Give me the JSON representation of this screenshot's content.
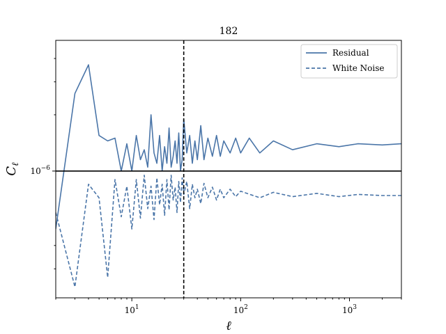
{
  "chart_data": {
    "type": "line",
    "title": "182",
    "xlabel": "ℓ",
    "ylabel": "C",
    "ylabel_sub": "ℓ",
    "xscale": "log",
    "yscale": "log",
    "xlim": [
      2,
      3000
    ],
    "ylim": [
      0.21,
      5.0
    ],
    "x_tick_labels": [
      {
        "value": 10,
        "base": "10",
        "exp": "1"
      },
      {
        "value": 100,
        "base": "10",
        "exp": "2"
      },
      {
        "value": 1000,
        "base": "10",
        "exp": "3"
      }
    ],
    "y_tick_labels": [
      {
        "value": 1,
        "base": "10",
        "exp": "−6"
      }
    ],
    "y_unit_note": "y values are in units of 1e-6",
    "hline": 1.0,
    "vline": 30,
    "legend_position": "top-right",
    "series": [
      {
        "name": "Residual",
        "style": "solid",
        "color": "#4a75a8",
        "points": [
          [
            2,
            0.49
          ],
          [
            3,
            2.6
          ],
          [
            4,
            3.7
          ],
          [
            5,
            1.55
          ],
          [
            6,
            1.45
          ],
          [
            7,
            1.5
          ],
          [
            8,
            1.0
          ],
          [
            9,
            1.4
          ],
          [
            10,
            1.0
          ],
          [
            11,
            1.55
          ],
          [
            12,
            1.15
          ],
          [
            13,
            1.3
          ],
          [
            14,
            1.05
          ],
          [
            15,
            2.0
          ],
          [
            16,
            1.25
          ],
          [
            17,
            1.1
          ],
          [
            18,
            1.55
          ],
          [
            19,
            1.0
          ],
          [
            20,
            1.35
          ],
          [
            21,
            1.1
          ],
          [
            22,
            1.7
          ],
          [
            23,
            1.05
          ],
          [
            24,
            1.2
          ],
          [
            25,
            1.45
          ],
          [
            26,
            1.1
          ],
          [
            27,
            1.6
          ],
          [
            28,
            1.0
          ],
          [
            29,
            1.15
          ],
          [
            30,
            1.9
          ],
          [
            32,
            1.25
          ],
          [
            34,
            1.55
          ],
          [
            36,
            1.1
          ],
          [
            38,
            1.45
          ],
          [
            40,
            1.15
          ],
          [
            43,
            1.75
          ],
          [
            46,
            1.15
          ],
          [
            50,
            1.5
          ],
          [
            55,
            1.2
          ],
          [
            60,
            1.55
          ],
          [
            65,
            1.2
          ],
          [
            70,
            1.45
          ],
          [
            80,
            1.25
          ],
          [
            90,
            1.5
          ],
          [
            100,
            1.25
          ],
          [
            120,
            1.5
          ],
          [
            150,
            1.25
          ],
          [
            200,
            1.45
          ],
          [
            300,
            1.3
          ],
          [
            500,
            1.4
          ],
          [
            800,
            1.35
          ],
          [
            1200,
            1.4
          ],
          [
            2000,
            1.38
          ],
          [
            3000,
            1.4
          ]
        ]
      },
      {
        "name": "White Noise",
        "style": "dashed",
        "color": "#4a75a8",
        "points": [
          [
            2,
            0.6
          ],
          [
            3,
            0.24
          ],
          [
            4,
            0.85
          ],
          [
            5,
            0.72
          ],
          [
            6,
            0.27
          ],
          [
            7,
            0.9
          ],
          [
            8,
            0.57
          ],
          [
            9,
            0.83
          ],
          [
            10,
            0.49
          ],
          [
            11,
            0.9
          ],
          [
            12,
            0.56
          ],
          [
            13,
            0.95
          ],
          [
            14,
            0.63
          ],
          [
            15,
            0.83
          ],
          [
            16,
            0.55
          ],
          [
            17,
            0.92
          ],
          [
            18,
            0.66
          ],
          [
            19,
            0.85
          ],
          [
            20,
            0.58
          ],
          [
            21,
            0.9
          ],
          [
            22,
            0.62
          ],
          [
            23,
            0.95
          ],
          [
            24,
            0.7
          ],
          [
            25,
            0.82
          ],
          [
            26,
            0.6
          ],
          [
            27,
            0.88
          ],
          [
            28,
            0.68
          ],
          [
            29,
            0.92
          ],
          [
            30,
            0.75
          ],
          [
            32,
            0.88
          ],
          [
            34,
            0.63
          ],
          [
            36,
            0.85
          ],
          [
            38,
            0.72
          ],
          [
            40,
            0.8
          ],
          [
            43,
            0.67
          ],
          [
            46,
            0.86
          ],
          [
            50,
            0.72
          ],
          [
            55,
            0.82
          ],
          [
            60,
            0.7
          ],
          [
            65,
            0.8
          ],
          [
            70,
            0.72
          ],
          [
            80,
            0.8
          ],
          [
            90,
            0.73
          ],
          [
            100,
            0.78
          ],
          [
            150,
            0.72
          ],
          [
            200,
            0.77
          ],
          [
            300,
            0.73
          ],
          [
            500,
            0.76
          ],
          [
            800,
            0.73
          ],
          [
            1200,
            0.75
          ],
          [
            2000,
            0.74
          ],
          [
            3000,
            0.74
          ]
        ]
      }
    ]
  }
}
